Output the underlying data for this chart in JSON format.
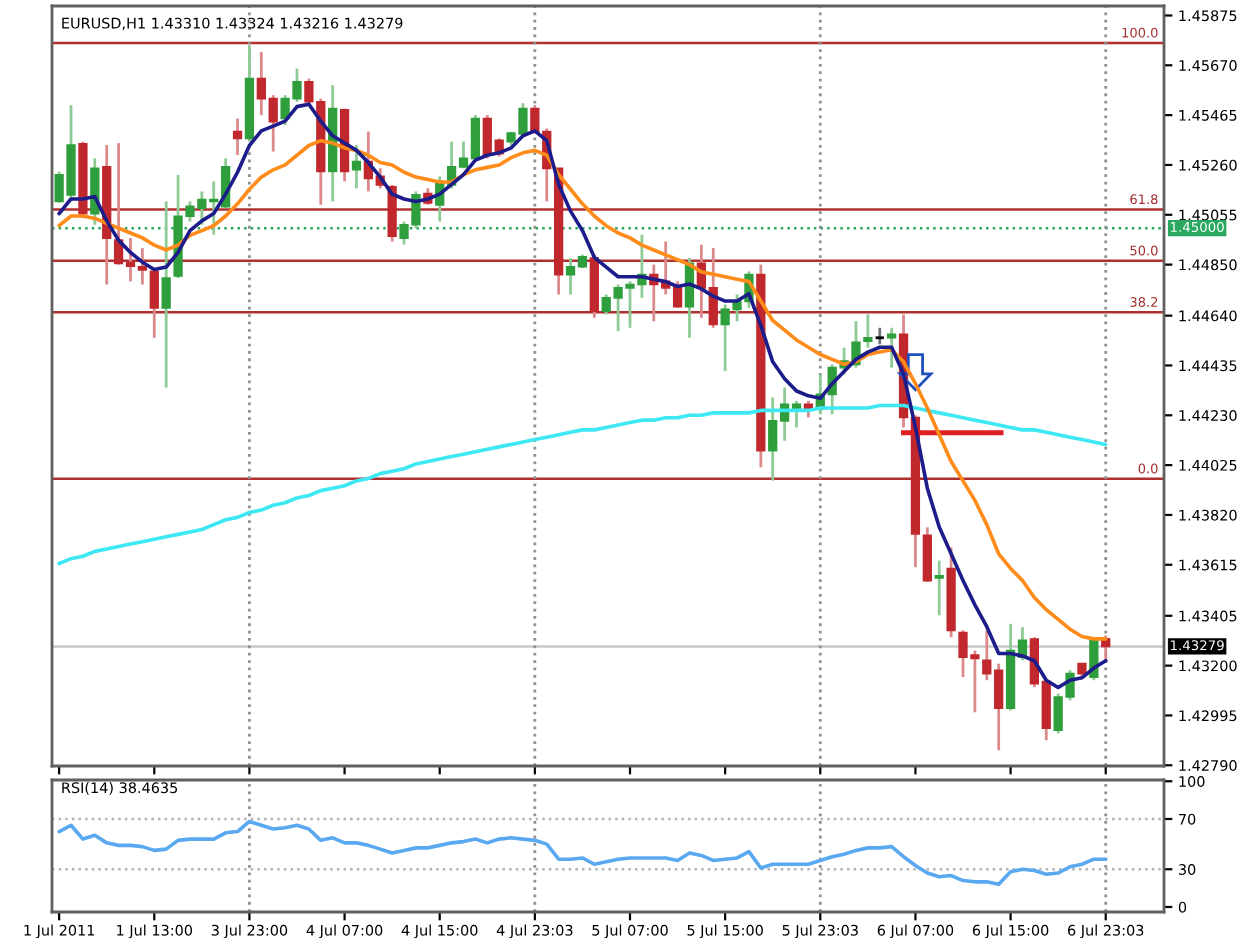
{
  "chart_data": [
    {
      "type": "candlestick",
      "title": "EURUSD,H1 1.43310 1.43324 1.43216 1.43279",
      "categories": [
        "1 Jul 2011",
        null,
        null,
        null,
        null,
        null,
        null,
        null,
        "1 Jul 13:00",
        null,
        null,
        null,
        null,
        null,
        null,
        null,
        "3 Jul 23:00",
        null,
        null,
        null,
        null,
        null,
        null,
        null,
        "4 Jul 07:00",
        null,
        null,
        null,
        null,
        null,
        null,
        null,
        "4 Jul 15:00",
        null,
        null,
        null,
        null,
        null,
        null,
        null,
        "4 Jul 23:03",
        null,
        null,
        null,
        null,
        null,
        null,
        null,
        "5 Jul 07:00",
        null,
        null,
        null,
        null,
        null,
        null,
        null,
        "5 Jul 15:00",
        null,
        null,
        null,
        null,
        null,
        null,
        null,
        "5 Jul 23:03",
        null,
        null,
        null,
        null,
        null,
        null,
        null,
        "6 Jul 07:00",
        null,
        null,
        null,
        null,
        null,
        null,
        null,
        "6 Jul 15:00",
        null,
        null,
        null,
        null,
        null,
        null,
        null,
        "6 Jul 23:03"
      ],
      "ohlc": [
        [
          1.4511,
          1.45233,
          1.45105,
          1.45219
        ],
        [
          1.45137,
          1.45506,
          1.4511,
          1.45342
        ],
        [
          1.45347,
          1.45356,
          1.45041,
          1.4506
        ],
        [
          1.4506,
          1.45287,
          1.45014,
          1.45246
        ],
        [
          1.45252,
          1.45342,
          1.44768,
          1.44959
        ],
        [
          1.44951,
          1.4535,
          1.4485,
          1.44855
        ],
        [
          1.44858,
          1.44959,
          1.44781,
          1.44844
        ],
        [
          1.44841,
          1.44918,
          1.44768,
          1.44828
        ],
        [
          1.44822,
          1.44836,
          1.44549,
          1.44672
        ],
        [
          1.44672,
          1.4511,
          1.44344,
          1.44795
        ],
        [
          1.44803,
          1.45219,
          1.44795,
          1.45049
        ],
        [
          1.45049,
          1.4511,
          1.45027,
          1.4509
        ],
        [
          1.45082,
          1.45151,
          1.45014,
          1.45118
        ],
        [
          1.4511,
          1.45192,
          1.44973,
          1.45118
        ],
        [
          1.45088,
          1.45287,
          1.45082,
          1.45252
        ],
        [
          1.45397,
          1.45451,
          1.45301,
          1.45369
        ],
        [
          1.45369,
          1.45752,
          1.45356,
          1.45615
        ],
        [
          1.45615,
          1.45725,
          1.45465,
          1.45533
        ],
        [
          1.45533,
          1.45547,
          1.45315,
          1.45438
        ],
        [
          1.45451,
          1.45547,
          1.45424,
          1.45533
        ],
        [
          1.45533,
          1.45657,
          1.4552,
          1.45602
        ],
        [
          1.45602,
          1.45615,
          1.45506,
          1.4552
        ],
        [
          1.4552,
          1.45533,
          1.45096,
          1.45233
        ],
        [
          1.45233,
          1.45588,
          1.4511,
          1.45492
        ],
        [
          1.45487,
          1.45492,
          1.45192,
          1.45233
        ],
        [
          1.45241,
          1.45342,
          1.45164,
          1.45274
        ],
        [
          1.45274,
          1.45397,
          1.45151,
          1.45205
        ],
        [
          1.45213,
          1.45246,
          1.45164,
          1.45178
        ],
        [
          1.4517,
          1.45178,
          1.44945,
          1.44967
        ],
        [
          1.44959,
          1.45027,
          1.44932,
          1.45014
        ],
        [
          1.45014,
          1.45151,
          1.45,
          1.45137
        ],
        [
          1.45142,
          1.45164,
          1.45096,
          1.45104
        ],
        [
          1.45096,
          1.45213,
          1.45027,
          1.45192
        ],
        [
          1.45178,
          1.45356,
          1.45164,
          1.45252
        ],
        [
          1.45252,
          1.45356,
          1.45246,
          1.45287
        ],
        [
          1.45287,
          1.45465,
          1.45274,
          1.45451
        ],
        [
          1.45451,
          1.45465,
          1.45287,
          1.45301
        ],
        [
          1.45361,
          1.45369,
          1.45295,
          1.45306
        ],
        [
          1.45356,
          1.45397,
          1.45342,
          1.45391
        ],
        [
          1.45388,
          1.45514,
          1.45383,
          1.45492
        ],
        [
          1.45492,
          1.45506,
          1.45388,
          1.45397
        ],
        [
          1.45397,
          1.4541,
          1.4511,
          1.45246
        ],
        [
          1.45246,
          1.45246,
          1.44727,
          1.44809
        ],
        [
          1.44809,
          1.44877,
          1.44727,
          1.44841
        ],
        [
          1.44841,
          1.44891,
          1.44836,
          1.44882
        ],
        [
          1.44877,
          1.44891,
          1.44631,
          1.44658
        ],
        [
          1.44658,
          1.44727,
          1.44645,
          1.44713
        ],
        [
          1.44713,
          1.44768,
          1.44576,
          1.44754
        ],
        [
          1.44754,
          1.44781,
          1.4459,
          1.44768
        ],
        [
          1.44768,
          1.44973,
          1.44713,
          1.44809
        ],
        [
          1.44809,
          1.4485,
          1.44617,
          1.44768
        ],
        [
          1.44781,
          1.44945,
          1.44727,
          1.44754
        ],
        [
          1.4476,
          1.44781,
          1.44672,
          1.44677
        ],
        [
          1.44677,
          1.44877,
          1.44549,
          1.44855
        ],
        [
          1.44855,
          1.44932,
          1.44631,
          1.44754
        ],
        [
          1.44754,
          1.44918,
          1.4459,
          1.44604
        ],
        [
          1.44604,
          1.44686,
          1.44412,
          1.44666
        ],
        [
          1.44666,
          1.44727,
          1.44617,
          1.44699
        ],
        [
          1.44699,
          1.44822,
          1.44672,
          1.44809
        ],
        [
          1.44809,
          1.4485,
          1.44016,
          1.44084
        ],
        [
          1.44084,
          1.44303,
          1.43961,
          1.44207
        ],
        [
          1.44207,
          1.44344,
          1.44125,
          1.44275
        ],
        [
          1.44256,
          1.44289,
          1.4418,
          1.44275
        ],
        [
          1.44275,
          1.44289,
          1.44221,
          1.44256
        ],
        [
          1.44256,
          1.44398,
          1.44234,
          1.44316
        ],
        [
          1.44316,
          1.44439,
          1.44234,
          1.44426
        ],
        [
          1.44426,
          1.44508,
          1.44398,
          1.44453
        ],
        [
          1.44439,
          1.44617,
          1.44426,
          1.4453
        ],
        [
          1.44535,
          1.44645,
          1.44508,
          1.44549
        ],
        [
          1.44549,
          1.4459,
          1.44522,
          1.44549
        ],
        [
          1.44549,
          1.4459,
          1.44426,
          1.44563
        ],
        [
          1.44563,
          1.44645,
          1.4418,
          1.44221
        ],
        [
          1.44221,
          1.4423,
          1.43605,
          1.43742
        ],
        [
          1.43736,
          1.43769,
          1.43544,
          1.4355
        ],
        [
          1.43561,
          1.43632,
          1.43407,
          1.43569
        ],
        [
          1.43599,
          1.43686,
          1.43317,
          1.43345
        ],
        [
          1.43336,
          1.43345,
          1.43153,
          1.43235
        ],
        [
          1.43243,
          1.43262,
          1.43008,
          1.4323
        ],
        [
          1.43222,
          1.43345,
          1.4314,
          1.43167
        ],
        [
          1.43181,
          1.43208,
          1.42852,
          1.43025
        ],
        [
          1.43025,
          1.43372,
          1.43016,
          1.43262
        ],
        [
          1.43235,
          1.43358,
          1.43222,
          1.43304
        ],
        [
          1.43309,
          1.43317,
          1.43112,
          1.43126
        ],
        [
          1.43134,
          1.4314,
          1.42893,
          1.42943
        ],
        [
          1.42934,
          1.43085,
          1.42921,
          1.43071
        ],
        [
          1.43071,
          1.43181,
          1.43057,
          1.43167
        ],
        [
          1.43208,
          1.43208,
          1.43153,
          1.43167
        ],
        [
          1.43153,
          1.43317,
          1.4314,
          1.43304
        ],
        [
          1.4331,
          1.43324,
          1.43216,
          1.43279
        ]
      ],
      "colors": [
        "#2f9e3c",
        "#2f9e3c",
        "#c0282d",
        "#2f9e3c",
        "#c0282d",
        "#c0282d",
        "#c0282d",
        "#c0282d",
        "#c0282d",
        "#2f9e3c",
        "#2f9e3c",
        "#2f9e3c",
        "#2f9e3c",
        "#2f9e3c",
        "#2f9e3c",
        "#c0282d",
        "#2f9e3c",
        "#c0282d",
        "#c0282d",
        "#2f9e3c",
        "#2f9e3c",
        "#c0282d",
        "#c0282d",
        "#2f9e3c",
        "#c0282d",
        "#2f9e3c",
        "#c0282d",
        "#c0282d",
        "#c0282d",
        "#2f9e3c",
        "#2f9e3c",
        "#c0282d",
        "#2f9e3c",
        "#2f9e3c",
        "#2f9e3c",
        "#2f9e3c",
        "#c0282d",
        "#c0282d",
        "#2f9e3c",
        "#2f9e3c",
        "#c0282d",
        "#c0282d",
        "#c0282d",
        "#2f9e3c",
        "#2f9e3c",
        "#c0282d",
        "#2f9e3c",
        "#2f9e3c",
        "#2f9e3c",
        "#2f9e3c",
        "#c0282d",
        "#c0282d",
        "#c0282d",
        "#2f9e3c",
        "#c0282d",
        "#c0282d",
        "#2f9e3c",
        "#2f9e3c",
        "#2f9e3c",
        "#c0282d",
        "#2f9e3c",
        "#2f9e3c",
        "#2f9e3c",
        "#c0282d",
        "#2f9e3c",
        "#2f9e3c",
        "#2f9e3c",
        "#2f9e3c",
        "#2f9e3c",
        "#000000",
        "#2f9e3c",
        "#c0282d",
        "#c0282d",
        "#c0282d",
        "#2f9e3c",
        "#c0282d",
        "#c0282d",
        "#c0282d",
        "#c0282d",
        "#c0282d",
        "#2f9e3c",
        "#2f9e3c",
        "#c0282d",
        "#c0282d",
        "#2f9e3c",
        "#2f9e3c",
        "#c0282d",
        "#2f9e3c",
        "#c0282d"
      ],
      "series": [
        {
          "type": "line",
          "color": "#3ee8f2",
          "values": [
            1.4362,
            1.4364,
            1.4365,
            1.4367,
            1.4368,
            1.4369,
            1.437,
            1.4371,
            1.4372,
            1.4373,
            1.4374,
            1.4375,
            1.4376,
            1.4378,
            1.438,
            1.4381,
            1.4383,
            1.4384,
            1.4386,
            1.4387,
            1.4389,
            1.439,
            1.4392,
            1.4393,
            1.4394,
            1.4396,
            1.4397,
            1.4399,
            1.44,
            1.4401,
            1.4403,
            1.4404,
            1.4405,
            1.4406,
            1.4407,
            1.4408,
            1.4409,
            1.441,
            1.4411,
            1.4412,
            1.4413,
            1.4414,
            1.4415,
            1.4416,
            1.4417,
            1.4417,
            1.4418,
            1.4419,
            1.442,
            1.4421,
            1.4421,
            1.4422,
            1.4422,
            1.4423,
            1.4423,
            1.4424,
            1.4424,
            1.4424,
            1.4424,
            1.4425,
            1.4425,
            1.4425,
            1.4425,
            1.4425,
            1.4426,
            1.4426,
            1.4426,
            1.4426,
            1.4426,
            1.4427,
            1.4427,
            1.4427,
            1.4426,
            1.4425,
            1.4424,
            1.4423,
            1.4422,
            1.4421,
            1.442,
            1.4419,
            1.4418,
            1.4417,
            1.4417,
            1.4416,
            1.4415,
            1.4414,
            1.4413,
            1.4412,
            1.4411
          ]
        },
        {
          "type": "line",
          "color": "#ff8c1a",
          "values": [
            1.4501,
            1.4505,
            1.4505,
            1.4504,
            1.4502,
            1.45,
            1.4498,
            1.4496,
            1.4493,
            1.4491,
            1.4493,
            1.4497,
            1.4499,
            1.4501,
            1.4505,
            1.451,
            1.4516,
            1.4521,
            1.4524,
            1.4526,
            1.453,
            1.4534,
            1.4536,
            1.4535,
            1.4533,
            1.4532,
            1.453,
            1.4527,
            1.4526,
            1.4523,
            1.4521,
            1.452,
            1.4519,
            1.4519,
            1.4522,
            1.4524,
            1.4525,
            1.4526,
            1.4529,
            1.4531,
            1.4532,
            1.453,
            1.4522,
            1.4516,
            1.451,
            1.4505,
            1.4501,
            1.4498,
            1.4496,
            1.4493,
            1.4491,
            1.4489,
            1.4487,
            1.4485,
            1.4482,
            1.4481,
            1.448,
            1.4479,
            1.4478,
            1.447,
            1.4462,
            1.4458,
            1.4454,
            1.4451,
            1.4448,
            1.4446,
            1.4444,
            1.4445,
            1.4448,
            1.4449,
            1.445,
            1.4445,
            1.4436,
            1.4426,
            1.4415,
            1.4404,
            1.4396,
            1.4388,
            1.4378,
            1.4366,
            1.436,
            1.4355,
            1.4348,
            1.4343,
            1.4339,
            1.4335,
            1.4332,
            1.4331,
            1.4331
          ]
        },
        {
          "type": "line",
          "color": "#1c1c8a",
          "values": [
            1.4506,
            1.4512,
            1.4512,
            1.4513,
            1.4503,
            1.4495,
            1.449,
            1.4486,
            1.4483,
            1.4484,
            1.449,
            1.4499,
            1.4503,
            1.4506,
            1.4514,
            1.4523,
            1.4534,
            1.454,
            1.4542,
            1.4544,
            1.455,
            1.4551,
            1.4544,
            1.4538,
            1.4535,
            1.4532,
            1.4527,
            1.4521,
            1.4514,
            1.4512,
            1.4511,
            1.4512,
            1.4514,
            1.4518,
            1.4522,
            1.4528,
            1.453,
            1.4531,
            1.4533,
            1.4538,
            1.454,
            1.4536,
            1.4518,
            1.4507,
            1.4499,
            1.4488,
            1.4484,
            1.448,
            1.448,
            1.448,
            1.4479,
            1.4478,
            1.4476,
            1.4477,
            1.4475,
            1.4472,
            1.447,
            1.447,
            1.4473,
            1.446,
            1.4445,
            1.4438,
            1.4433,
            1.4431,
            1.443,
            1.4436,
            1.4441,
            1.4446,
            1.4449,
            1.4451,
            1.4451,
            1.444,
            1.4418,
            1.4393,
            1.4377,
            1.4366,
            1.4355,
            1.4345,
            1.4336,
            1.4325,
            1.4325,
            1.4324,
            1.4322,
            1.4314,
            1.4311,
            1.4314,
            1.4315,
            1.4319,
            1.4322
          ]
        }
      ],
      "ylim": [
        1.42787,
        1.45914
      ],
      "yticks": [
        1.45875,
        {
          "value": 1.4567,
          "label": "1.45670"
        },
        1.45465,
        {
          "value": 1.4526,
          "label": "1.45260"
        },
        1.45055,
        {
          "value": 1.4485,
          "label": "1.44850"
        },
        {
          "value": 1.4464,
          "label": "1.44640"
        },
        1.44435,
        {
          "value": 1.4423,
          "label": "1.44230"
        },
        1.44025,
        {
          "value": 1.4382,
          "label": "1.43820"
        },
        1.43615,
        1.43405,
        {
          "value": 1.432,
          "label": "1.43200"
        },
        1.42995,
        {
          "value": 1.4279,
          "label": "1.42790"
        }
      ],
      "ref_lines": [
        {
          "axis": "y",
          "value": 1.45762,
          "color": "#b03030",
          "line_style": "solid"
        },
        {
          "axis": "y",
          "value": 1.45077,
          "color": "#b03030",
          "line_style": "solid"
        },
        {
          "axis": "y",
          "value": 1.44866,
          "color": "#b03030",
          "line_style": "solid"
        },
        {
          "axis": "y",
          "value": 1.44654,
          "color": "#b03030",
          "line_style": "solid"
        },
        {
          "axis": "y",
          "value": 1.43969,
          "color": "#b03030",
          "line_style": "solid"
        },
        {
          "axis": "y",
          "value": 1.45,
          "label": "1.45000",
          "color": "#2aa860",
          "line_style": "dotted"
        },
        {
          "axis": "y",
          "value": 1.43279,
          "label": "1.43279",
          "color": "#c8c8c8",
          "line_style": "solid"
        },
        {
          "axis": "x",
          "value": "3 Jul 23:00",
          "color": "#909090",
          "line_style": "dotted"
        },
        {
          "axis": "x",
          "value": "4 Jul 23:03",
          "color": "#909090",
          "line_style": "dotted"
        },
        {
          "axis": "x",
          "value": "5 Jul 23:03",
          "color": "#909090",
          "line_style": "dotted"
        },
        {
          "axis": "x",
          "value": "6 Jul 23:03",
          "color": "#909090",
          "line_style": "dotted"
        }
      ],
      "annotations": [
        {
          "text": "100.0",
          "y": 1.45762
        },
        {
          "text": "61.8",
          "y": 1.45077
        },
        {
          "text": "50.0",
          "y": 1.44866
        },
        {
          "text": "38.2",
          "y": 1.44654
        },
        {
          "text": "0.0",
          "y": 1.43969
        }
      ],
      "tick_labels": "y",
      "grid": false
    },
    {
      "type": "line",
      "title": "RSI(14) 38.4635",
      "categories": [
        "1 Jul 2011",
        null,
        null,
        null,
        null,
        null,
        null,
        null,
        "1 Jul 13:00",
        null,
        null,
        null,
        null,
        null,
        null,
        null,
        "3 Jul 23:00",
        null,
        null,
        null,
        null,
        null,
        null,
        null,
        "4 Jul 07:00",
        null,
        null,
        null,
        null,
        null,
        null,
        null,
        "4 Jul 15:00",
        null,
        null,
        null,
        null,
        null,
        null,
        null,
        "4 Jul 23:03",
        null,
        null,
        null,
        null,
        null,
        null,
        null,
        "5 Jul 07:00",
        null,
        null,
        null,
        null,
        null,
        null,
        null,
        "5 Jul 15:00",
        null,
        null,
        null,
        null,
        null,
        null,
        null,
        "5 Jul 23:03",
        null,
        null,
        null,
        null,
        null,
        null,
        null,
        "6 Jul 07:00",
        null,
        null,
        null,
        null,
        null,
        null,
        null,
        "6 Jul 15:00",
        null,
        null,
        null,
        null,
        null,
        null,
        null,
        "6 Jul 23:03"
      ],
      "series": [
        {
          "color": "#5aa9f0",
          "values": [
            60,
            65,
            54,
            57,
            51,
            49,
            49,
            48,
            45,
            46,
            53,
            54,
            54,
            54,
            59,
            60,
            68,
            65,
            62,
            63,
            65,
            62,
            53,
            55,
            51,
            51,
            49,
            46,
            43,
            45,
            47,
            47,
            49,
            51,
            52,
            54,
            51,
            54,
            55,
            54,
            53,
            50,
            38,
            38,
            39,
            34,
            36,
            38,
            39,
            39,
            39,
            39,
            37,
            43,
            41,
            37,
            38,
            39,
            44,
            31,
            34,
            34,
            34,
            34,
            37,
            40,
            42,
            45,
            47,
            47,
            48,
            40,
            33,
            27,
            24,
            25,
            21,
            20,
            20,
            18,
            28,
            30,
            29,
            26,
            27,
            32,
            34,
            38,
            38
          ]
        }
      ],
      "ylim": [
        -4,
        101
      ],
      "yticks": [
        0,
        30,
        70,
        100
      ],
      "ref_lines": [
        {
          "axis": "y",
          "value": 30,
          "color": "#b4b4b4",
          "line_style": "dotted"
        },
        {
          "axis": "y",
          "value": 70,
          "color": "#b4b4b4",
          "line_style": "dotted"
        },
        {
          "axis": "x",
          "value": "3 Jul 23:00",
          "color": "#909090",
          "line_style": "dotted"
        },
        {
          "axis": "x",
          "value": "4 Jul 23:03",
          "color": "#909090",
          "line_style": "dotted"
        },
        {
          "axis": "x",
          "value": "5 Jul 23:03",
          "color": "#909090",
          "line_style": "dotted"
        },
        {
          "axis": "x",
          "value": "6 Jul 23:03",
          "color": "#909090",
          "line_style": "dotted"
        }
      ]
    }
  ]
}
